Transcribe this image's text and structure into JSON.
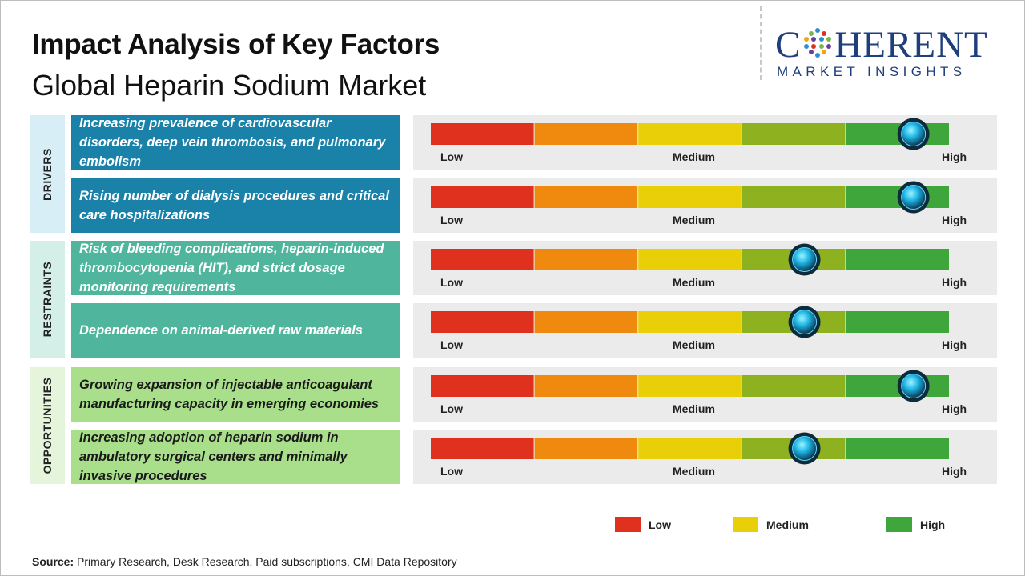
{
  "title": "Impact Analysis of Key Factors",
  "subtitle": "Global Heparin Sodium Market",
  "logo": {
    "top": "COHERENT",
    "top_rest": "HERENT",
    "top_first": "C",
    "bottom": "MARKET INSIGHTS"
  },
  "chart_data": {
    "type": "gauge",
    "scale": [
      "Low",
      "Medium",
      "High"
    ],
    "segment_colors": [
      "#e0301e",
      "#ef8a0e",
      "#e8cf08",
      "#8eb11f",
      "#3fa63c"
    ],
    "categories": [
      {
        "name": "DRIVERS",
        "color": "#d7eef6"
      },
      {
        "name": "RESTRAINTS",
        "color": "#d3efe8"
      },
      {
        "name": "OPPORTUNITIES",
        "color": "#e4f5dc"
      }
    ],
    "factors": [
      {
        "category": "DRIVERS",
        "text": "Increasing prevalence of cardiovascular disorders, deep vein thrombosis, and pulmonary embolism",
        "impact": 0.93,
        "color": "#1a82a9"
      },
      {
        "category": "DRIVERS",
        "text": "Rising number of dialysis procedures and critical care hospitalizations",
        "impact": 0.93,
        "color": "#1a82a9"
      },
      {
        "category": "RESTRAINTS",
        "text": "Risk of bleeding complications, heparin-induced thrombocytopenia (HIT), and strict dosage monitoring requirements",
        "impact": 0.72,
        "color": "#4fb69d"
      },
      {
        "category": "RESTRAINTS",
        "text": "Dependence on animal-derived raw materials",
        "impact": 0.72,
        "color": "#4fb69d"
      },
      {
        "category": "OPPORTUNITIES",
        "text": "Growing expansion of injectable anticoagulant manufacturing capacity in emerging economies",
        "impact": 0.93,
        "color": "#a9de8a"
      },
      {
        "category": "OPPORTUNITIES",
        "text": "Increasing adoption of heparin sodium in ambulatory surgical centers and minimally invasive procedures",
        "impact": 0.72,
        "color": "#a9de8a"
      }
    ],
    "legend": [
      {
        "label": "Low",
        "color": "#e0301e"
      },
      {
        "label": "Medium",
        "color": "#e8cf08"
      },
      {
        "label": "High",
        "color": "#3fa63c"
      }
    ]
  },
  "source": {
    "label": "Source:",
    "text": "Primary Research, Desk Research, Paid subscriptions, CMI Data Repository"
  }
}
